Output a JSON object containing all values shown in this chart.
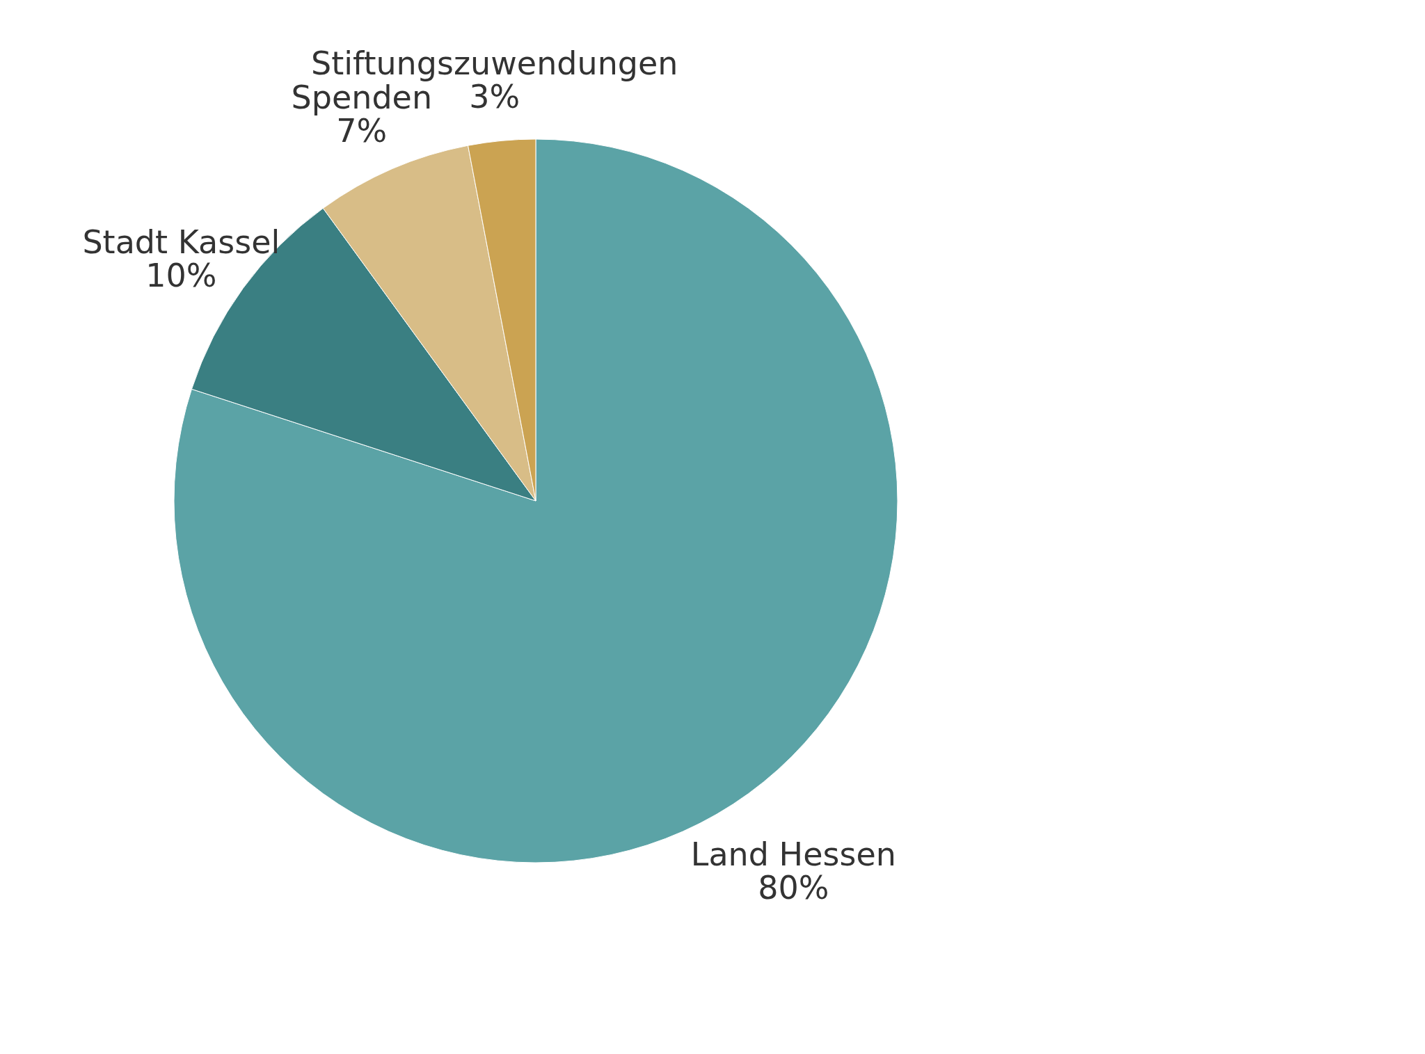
{
  "chart_data": {
    "type": "pie",
    "categories": [
      "Land Hessen",
      "Stadt Kassel",
      "Spenden",
      "Stiftungszuwendungen"
    ],
    "values": [
      80,
      10,
      7,
      3
    ],
    "value_labels": [
      "80%",
      "10%",
      "7%",
      "3%"
    ],
    "colors": [
      "#5ba3a6",
      "#3a7f82",
      "#d8bd87",
      "#cba352"
    ],
    "legend": false
  }
}
